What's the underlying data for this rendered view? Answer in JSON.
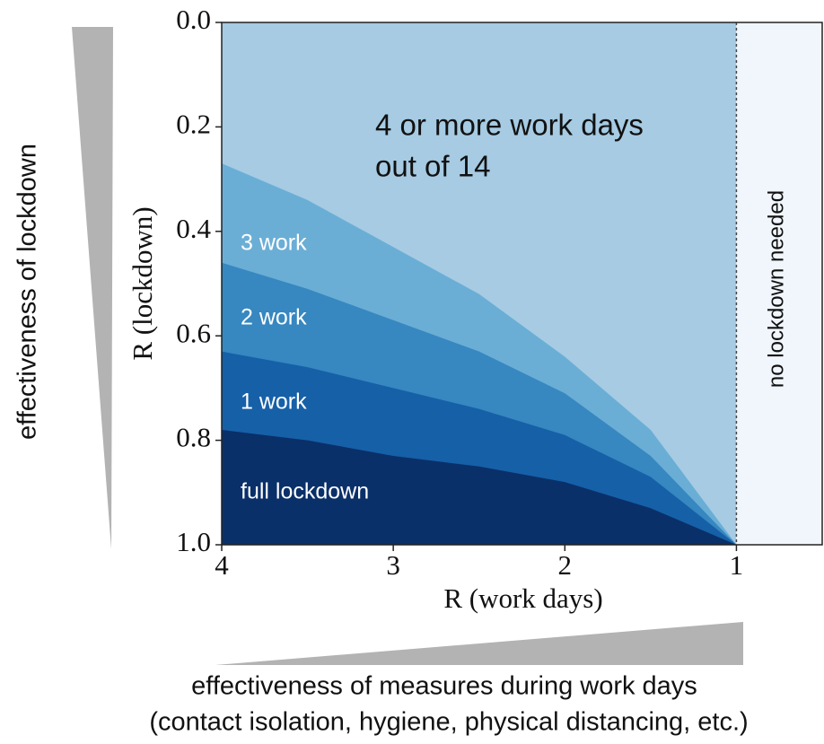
{
  "chart_data": {
    "type": "region",
    "x_label": "R (work days)",
    "y_label": "R (lockdown)",
    "x": [
      4,
      3.5,
      3,
      2.5,
      2,
      1.5,
      1
    ],
    "xlim": [
      4,
      0.5
    ],
    "xticks": [
      4,
      3,
      2,
      1
    ],
    "ylim": [
      1,
      0
    ],
    "yticks": [
      {
        "value": 1,
        "label": "1.0"
      },
      0.8,
      0.6,
      0.4,
      0.2,
      {
        "value": 0,
        "label": "0.0"
      }
    ],
    "background_region": {
      "lines": [
        "4 or more work days",
        "out of 14"
      ],
      "color": "#a6cbe3"
    },
    "series": [
      {
        "name": "3 work",
        "color": "#6aaed6",
        "values": [
          0.27,
          0.34,
          0.43,
          0.52,
          0.64,
          0.78,
          1
        ]
      },
      {
        "name": "2 work",
        "color": "#3787c0",
        "values": [
          0.46,
          0.51,
          0.57,
          0.63,
          0.71,
          0.83,
          1
        ]
      },
      {
        "name": "1 work",
        "color": "#1660a8",
        "values": [
          0.63,
          0.66,
          0.7,
          0.74,
          0.79,
          0.87,
          1
        ]
      },
      {
        "name": "full lockdown",
        "color": "#0a3069",
        "values": [
          0.78,
          0.8,
          0.83,
          0.85,
          0.88,
          0.93,
          1
        ]
      }
    ],
    "vline": 1,
    "right_region": {
      "label": "no lockdown needed",
      "color": "#f0f6fc"
    },
    "left_arrow_label": "effectiveness  of lockdown",
    "bottom_arrow_label": [
      "effectiveness of measures during work days",
      "(contact isolation, hygiene, physical distancing, etc.)"
    ]
  }
}
